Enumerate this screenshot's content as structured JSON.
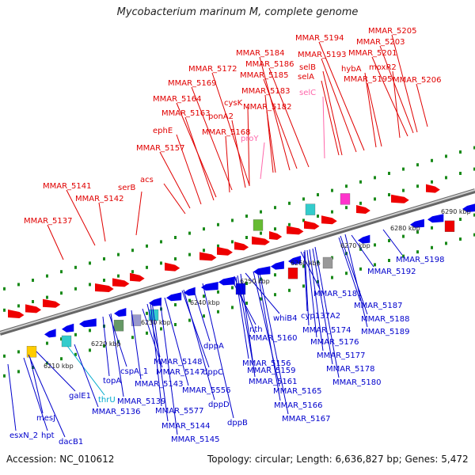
{
  "title": "Mycobacterium marinum M, complete genome",
  "footer": {
    "accession": "Accession: NC_010612",
    "summary": "Topology: circular; Length: 6,636,827 bp; Genes: 5,472"
  },
  "colors": {
    "forward_label": "#e00000",
    "reverse_label": "#0000cc",
    "rna_label_pink": "#ff66aa",
    "rna_label_cyan": "#00aacc",
    "backbone": "#888888",
    "tick": "#1a8a1a",
    "arrow_forward": "#ee0000",
    "arrow_reverse": "#0000ee"
  },
  "scale_ticks": [
    "6210 kbp",
    "6220 kbp",
    "6230 kbp",
    "6240 kbp",
    "6250 kbp",
    "6260 kbp",
    "6270 kbp",
    "6280 kbp",
    "6290 kbp"
  ],
  "top_labels": [
    "MMAR_5137",
    "MMAR_5141",
    "MMAR_5142",
    "serB",
    "acs",
    "MMAR_5157",
    "ephE",
    "MMAR_5163",
    "MMAR_5164",
    "MMAR_5168",
    "MMAR_5169",
    "ponA2",
    "cysK",
    "MMAR_5172",
    "proY",
    "MMAR_5183",
    "MMAR_5182",
    "MMAR_5184",
    "MMAR_5185",
    "MMAR_5186",
    "selC",
    "selA",
    "selB",
    "MMAR_5193",
    "MMAR_5194",
    "hybA",
    "MMAR_5195",
    "moxR2",
    "MMAR_5201",
    "MMAR_5203",
    "MMAR_5205",
    "MMAR_5206"
  ],
  "bottom_labels": [
    "esxN_2",
    "hpt",
    "mesJ",
    "dacB1",
    "galE1",
    "thrU",
    "MMAR_5136",
    "topA",
    "cspA_1",
    "MMAR_5139",
    "MMAR_5143",
    "MMAR_5147",
    "MMAR_5148",
    "MMAR_5577",
    "MMAR_5144",
    "MMAR_5145",
    "MMAR_5556",
    "dppC",
    "dppD",
    "dppA",
    "dppB",
    "nth",
    "MMAR_5156",
    "MMAR_5160",
    "MMAR_5159",
    "MMAR_5161",
    "whiB4",
    "MMAR_5165",
    "MMAR_5166",
    "MMAR_5167",
    "MMAR_5181",
    "cyp137A2",
    "MMAR_5174",
    "MMAR_5176",
    "MMAR_5177",
    "MMAR_5178",
    "MMAR_5180",
    "MMAR_5187",
    "MMAR_5188",
    "MMAR_5189",
    "MMAR_5192",
    "MMAR_5198"
  ]
}
